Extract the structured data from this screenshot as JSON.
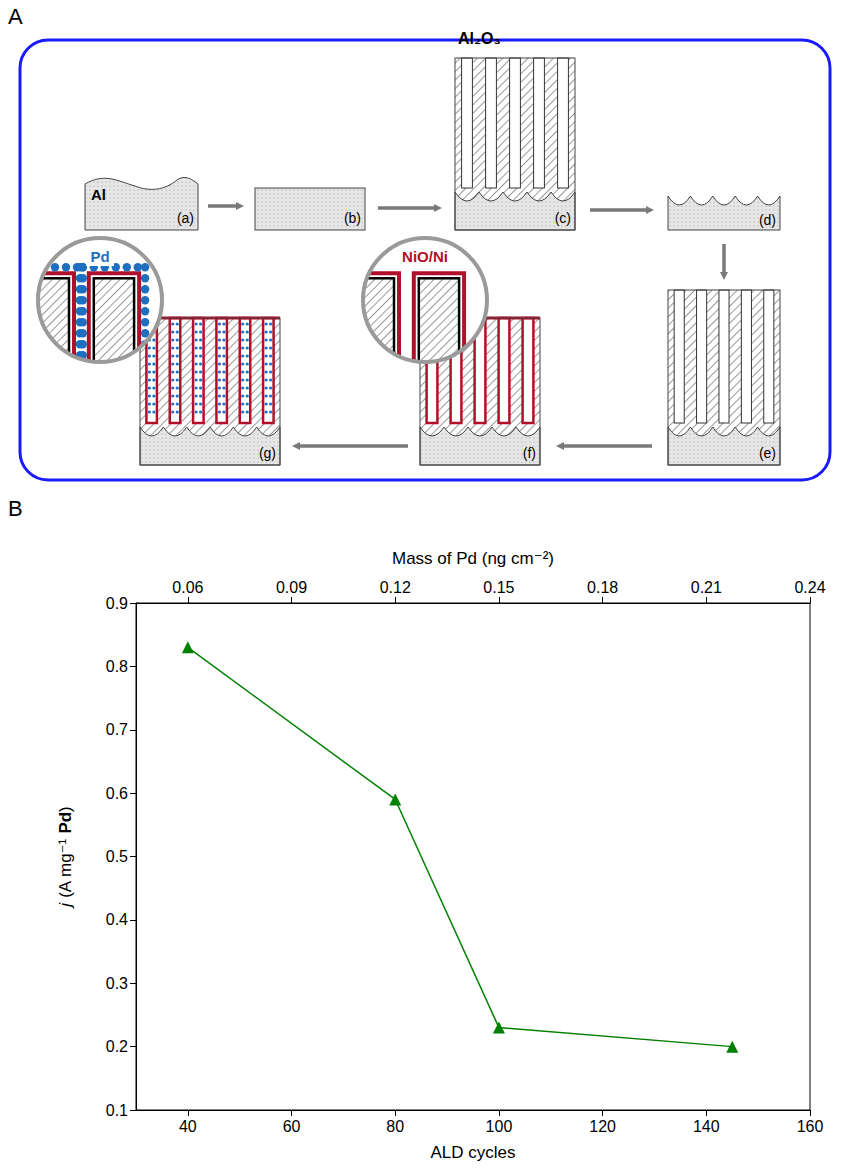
{
  "panel_labels": [
    "A",
    "B"
  ],
  "diagram": {
    "steps": [
      "(a)",
      "(b)",
      "(c)",
      "(d)",
      "(e)",
      "(f)",
      "(g)"
    ],
    "substrate": "Al",
    "oxide": "Al₂O₃",
    "coating": "NiO/Ni",
    "catalyst": "Pd"
  },
  "chart_data": {
    "type": "line",
    "xlabel": "ALD cycles",
    "x2label": "Mass of Pd (ng cm⁻²)",
    "ylabel": "j (A mg⁻¹ Pd)",
    "x": [
      40,
      80,
      100,
      145
    ],
    "values": [
      0.83,
      0.59,
      0.23,
      0.2
    ],
    "color": "#008000",
    "marker": "triangle",
    "xlim": [
      30,
      160
    ],
    "xticks": [
      40,
      60,
      80,
      100,
      120,
      140,
      160
    ],
    "x2lim": [
      0.045,
      0.24
    ],
    "x2ticks": [
      0.06,
      0.09,
      0.12,
      0.15,
      0.18,
      0.21,
      0.24
    ],
    "ylim": [
      0.1,
      0.9
    ],
    "yticks": [
      0.1,
      0.2,
      0.3,
      0.4,
      0.5,
      0.6,
      0.7,
      0.8,
      0.9
    ],
    "grid": false
  }
}
